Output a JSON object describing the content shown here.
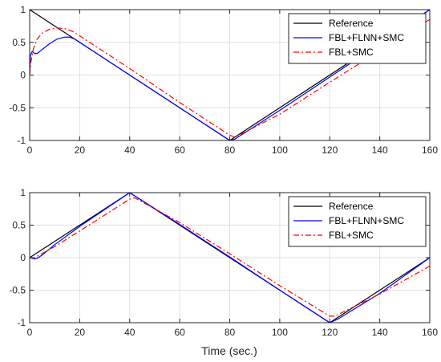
{
  "chart_data": [
    {
      "type": "line",
      "title": "",
      "xlabel": "",
      "ylabel": "",
      "xlim": [
        0,
        160
      ],
      "ylim": [
        -1,
        1
      ],
      "xticks": [
        "0",
        "20",
        "40",
        "60",
        "80",
        "100",
        "120",
        "140",
        "160"
      ],
      "yticks": [
        "-1",
        "-0.5",
        "0",
        "0.5",
        "1"
      ],
      "grid": true,
      "legend_position": "top-right",
      "series": [
        {
          "name": "Reference",
          "color": "#000000",
          "style": "solid",
          "points": [
            [
              0,
              1
            ],
            [
              80,
              -1
            ],
            [
              160,
              1
            ]
          ]
        },
        {
          "name": "FBL+FLNN+SMC",
          "color": "#0000ff",
          "style": "solid",
          "points": [
            [
              0,
              0
            ],
            [
              0.3,
              0.3
            ],
            [
              1,
              0.36
            ],
            [
              2,
              0.33
            ],
            [
              3,
              0.33
            ],
            [
              5,
              0.39
            ],
            [
              8,
              0.48
            ],
            [
              11,
              0.55
            ],
            [
              14,
              0.58
            ],
            [
              16,
              0.58
            ],
            [
              18,
              0.55
            ],
            [
              20,
              0.5
            ],
            [
              40,
              0.0
            ],
            [
              60,
              -0.5
            ],
            [
              80,
              -1.0
            ],
            [
              82,
              -0.98
            ],
            [
              100,
              -0.54
            ],
            [
              120,
              -0.03
            ],
            [
              140,
              0.48
            ],
            [
              160,
              1.0
            ]
          ]
        },
        {
          "name": "FBL+SMC",
          "color": "#ff0000",
          "style": "dashdot",
          "points": [
            [
              0,
              0
            ],
            [
              0.5,
              0.2
            ],
            [
              1.5,
              0.4
            ],
            [
              3,
              0.55
            ],
            [
              5,
              0.64
            ],
            [
              8,
              0.7
            ],
            [
              11,
              0.72
            ],
            [
              14,
              0.71
            ],
            [
              17,
              0.67
            ],
            [
              20,
              0.6
            ],
            [
              40,
              0.1
            ],
            [
              60,
              -0.42
            ],
            [
              80,
              -0.92
            ],
            [
              82,
              -0.95
            ],
            [
              100,
              -0.6
            ],
            [
              120,
              -0.11
            ],
            [
              140,
              0.37
            ],
            [
              160,
              0.85
            ]
          ]
        }
      ]
    },
    {
      "type": "line",
      "title": "",
      "xlabel": "Time (sec.)",
      "ylabel": "",
      "xlim": [
        0,
        160
      ],
      "ylim": [
        -1,
        1
      ],
      "xticks": [
        "0",
        "20",
        "40",
        "60",
        "80",
        "100",
        "120",
        "140",
        "160"
      ],
      "yticks": [
        "-1",
        "-0.5",
        "0",
        "0.5",
        "1"
      ],
      "grid": true,
      "legend_position": "top-right",
      "series": [
        {
          "name": "Reference",
          "color": "#000000",
          "style": "solid",
          "points": [
            [
              0,
              0
            ],
            [
              40,
              1
            ],
            [
              120,
              -1
            ],
            [
              160,
              0
            ]
          ]
        },
        {
          "name": "FBL+FLNN+SMC",
          "color": "#0000ff",
          "style": "solid",
          "points": [
            [
              0,
              0
            ],
            [
              1,
              -0.01
            ],
            [
              2,
              -0.02
            ],
            [
              3,
              -0.01
            ],
            [
              5,
              0.04
            ],
            [
              10,
              0.2
            ],
            [
              20,
              0.48
            ],
            [
              40,
              1.0
            ],
            [
              60,
              0.51
            ],
            [
              80,
              0.01
            ],
            [
              100,
              -0.5
            ],
            [
              120,
              -1.0
            ],
            [
              123,
              -0.95
            ],
            [
              140,
              -0.55
            ],
            [
              160,
              0.0
            ]
          ]
        },
        {
          "name": "FBL+SMC",
          "color": "#ff0000",
          "style": "dashdot",
          "points": [
            [
              0,
              0
            ],
            [
              2,
              0.0
            ],
            [
              10,
              0.17
            ],
            [
              20,
              0.41
            ],
            [
              40,
              0.9
            ],
            [
              42,
              0.92
            ],
            [
              60,
              0.54
            ],
            [
              80,
              0.06
            ],
            [
              100,
              -0.43
            ],
            [
              120,
              -0.9
            ],
            [
              122,
              -0.9
            ],
            [
              140,
              -0.56
            ],
            [
              160,
              -0.13
            ]
          ]
        }
      ]
    }
  ]
}
